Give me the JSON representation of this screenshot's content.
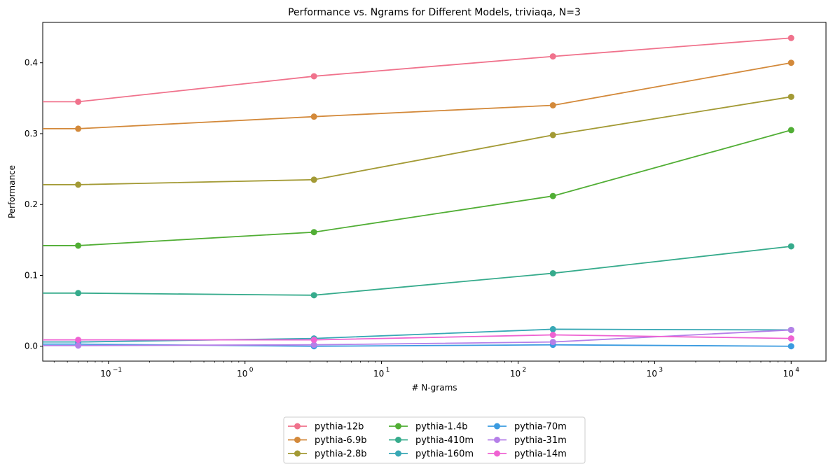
{
  "chart_data": {
    "type": "line",
    "title": "Performance vs. Ngrams for Different Models, triviaqa, N=3",
    "xlabel": "# N-grams",
    "ylabel": "Performance",
    "xscale": "log",
    "xlim": [
      0.033,
      18000
    ],
    "ylim": [
      -0.021,
      0.457
    ],
    "x_ticks": [
      {
        "value": 0.1,
        "label": "10",
        "exp": "−1"
      },
      {
        "value": 1,
        "label": "10",
        "exp": "0"
      },
      {
        "value": 10,
        "label": "10",
        "exp": "1"
      },
      {
        "value": 100,
        "label": "10",
        "exp": "2"
      },
      {
        "value": 1000,
        "label": "10",
        "exp": "3"
      },
      {
        "value": 10000,
        "label": "10",
        "exp": "4"
      }
    ],
    "y_ticks": [
      {
        "value": 0.0,
        "label": "0.0"
      },
      {
        "value": 0.1,
        "label": "0.1"
      },
      {
        "value": 0.2,
        "label": "0.2"
      },
      {
        "value": 0.3,
        "label": "0.3"
      },
      {
        "value": 0.4,
        "label": "0.4"
      }
    ],
    "x": [
      0.06,
      3.2,
      180,
      10000
    ],
    "series": [
      {
        "name": "pythia-12b",
        "color": "#f0728c",
        "values": [
          0.345,
          0.381,
          0.409,
          0.435
        ],
        "start": 0.345
      },
      {
        "name": "pythia-6.9b",
        "color": "#d3893a",
        "values": [
          0.307,
          0.324,
          0.34,
          0.4
        ],
        "start": 0.307
      },
      {
        "name": "pythia-2.8b",
        "color": "#a39a35",
        "values": [
          0.228,
          0.235,
          0.298,
          0.352
        ],
        "start": 0.228
      },
      {
        "name": "pythia-1.4b",
        "color": "#51ae35",
        "values": [
          0.142,
          0.161,
          0.212,
          0.305
        ],
        "start": 0.142
      },
      {
        "name": "pythia-410m",
        "color": "#36ab8c",
        "values": [
          0.075,
          0.072,
          0.103,
          0.141
        ],
        "start": 0.075
      },
      {
        "name": "pythia-160m",
        "color": "#38a8b5",
        "values": [
          0.006,
          0.011,
          0.024,
          0.023
        ],
        "start": 0.006
      },
      {
        "name": "pythia-70m",
        "color": "#3b9be0",
        "values": [
          0.003,
          0.0,
          0.002,
          0.0
        ],
        "start": 0.003
      },
      {
        "name": "pythia-31m",
        "color": "#b57fe8",
        "values": [
          0.001,
          0.002,
          0.006,
          0.023
        ],
        "start": 0.001
      },
      {
        "name": "pythia-14m",
        "color": "#ef62d2",
        "values": [
          0.009,
          0.009,
          0.016,
          0.011
        ],
        "start": 0.009
      }
    ],
    "legend": {
      "placement": "bottom-center",
      "columns": 3
    },
    "grid": false
  }
}
